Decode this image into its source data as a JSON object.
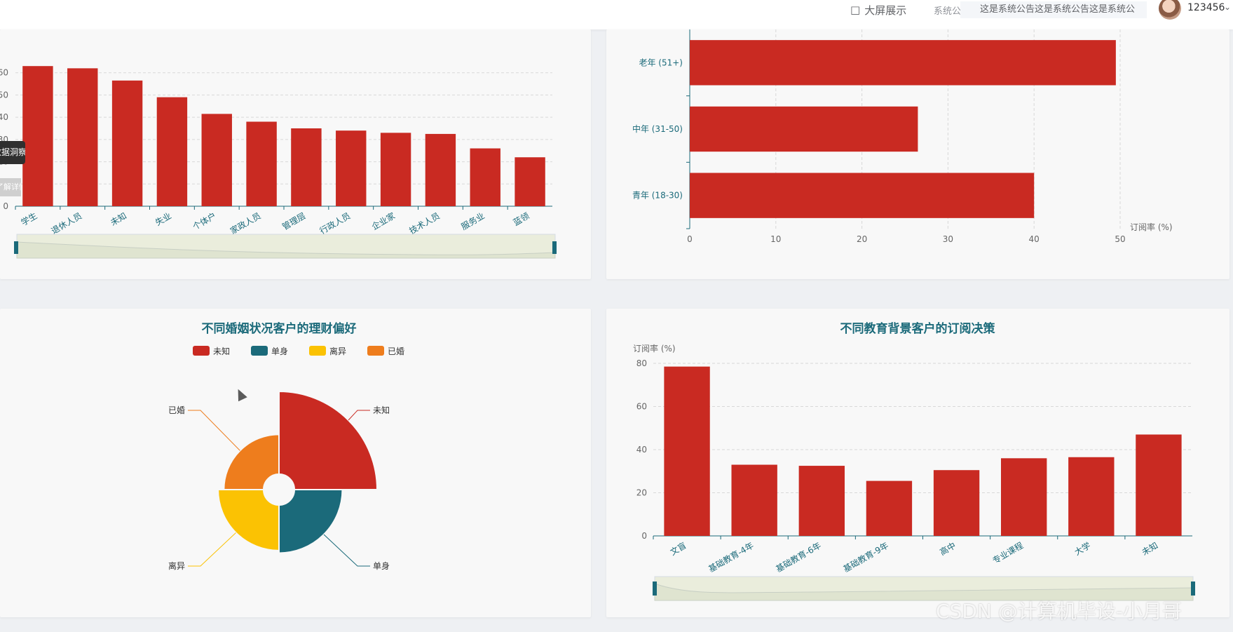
{
  "header": {
    "screen_label": "大屏展示",
    "notice_label": "系统公告",
    "notice_text": "这是系统公告这是系统公告这是系统公",
    "username": "123456"
  },
  "tooltip_fragments": [
    "数据洞察",
    "了解详情"
  ],
  "watermark": "CSDN @计算机毕设-小月哥",
  "colors": {
    "primary_red": "#c92a22",
    "teal": "#1b6a7a",
    "yellow": "#fbc203",
    "orange": "#ee7d1d",
    "title": "#1b6a7a"
  },
  "chart_data": [
    {
      "type": "bar",
      "title": "",
      "categories": [
        "学生",
        "退休人员",
        "未知",
        "失业",
        "个体户",
        "家政人员",
        "管理层",
        "行政人员",
        "企业家",
        "技术人员",
        "服务业",
        "蓝领"
      ],
      "values": [
        63,
        62,
        56.5,
        49,
        41.5,
        38,
        35,
        34,
        33,
        32.5,
        26,
        22
      ],
      "yticks": [
        "0",
        "10",
        "20",
        "30",
        "40",
        "50",
        "60"
      ],
      "ylim": [
        0,
        70
      ],
      "grid": true,
      "datazoom": true
    },
    {
      "type": "bar",
      "orientation": "horizontal",
      "title": "",
      "categories": [
        "青年 (18-30)",
        "中年 (31-50)",
        "老年 (51+)"
      ],
      "values": [
        40,
        26.5,
        49.5
      ],
      "xticks": [
        "0",
        "10",
        "20",
        "30",
        "40",
        "50"
      ],
      "xlabel": "订阅率 (%)",
      "xlim": [
        0,
        50
      ],
      "grid": true
    },
    {
      "type": "pie",
      "variant": "rose",
      "title": "不同婚姻状况客户的理财偏好",
      "legend": [
        "未知",
        "单身",
        "离异",
        "已婚"
      ],
      "legend_position": "top",
      "slices": [
        {
          "name": "未知",
          "value": 100
        },
        {
          "name": "单身",
          "value": 58
        },
        {
          "name": "离异",
          "value": 55
        },
        {
          "name": "已婚",
          "value": 48
        }
      ]
    },
    {
      "type": "bar",
      "title": "不同教育背景客户的订阅决策",
      "ylabel": "订阅率 (%)",
      "categories": [
        "文盲",
        "基础教育-4年",
        "基础教育-6年",
        "基础教育-9年",
        "高中",
        "专业课程",
        "大学",
        "未知"
      ],
      "values": [
        78.5,
        33,
        32.5,
        25.5,
        30.5,
        36,
        36.5,
        47
      ],
      "yticks": [
        "0",
        "20",
        "40",
        "60",
        "80"
      ],
      "ylim": [
        0,
        80
      ],
      "grid": true,
      "datazoom": true
    }
  ]
}
